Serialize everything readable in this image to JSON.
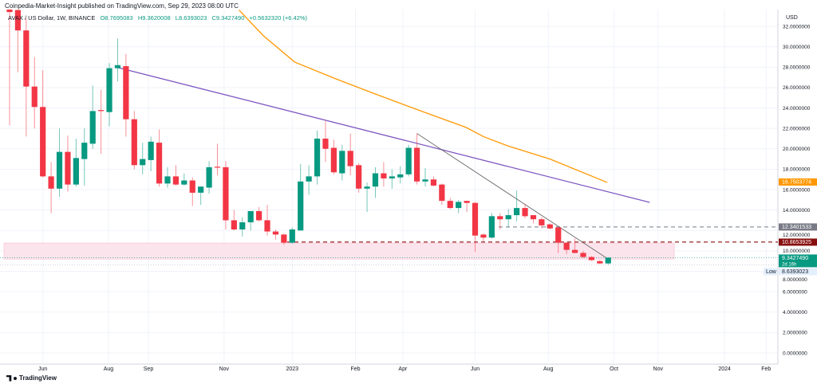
{
  "header": {
    "published": "Coinpedia-Market-Insight published on TradingView.com, Sep 29, 2023 08:00 UTC",
    "symbol": "AVAX / US Dollar, 1W, BINANCE",
    "open": "O8.7695083",
    "high": "H9.3620008",
    "low": "L8.6393023",
    "close": "C9.3427490",
    "change": "+0.5632320 (+6.42%)"
  },
  "currency": "USD",
  "footer": {
    "logo_text": "TradingView"
  },
  "colors": {
    "up": "#089981",
    "down": "#f23645",
    "ma": "#ff9800",
    "trend": "#7e57c2",
    "trend2": "#555555",
    "resist": "#880e0e",
    "zone": "#fce4ec"
  },
  "chart_data": {
    "type": "candlestick",
    "title": "AVAX / US Dollar, 1W, BINANCE",
    "ylim": [
      0,
      32
    ],
    "y_ticks": [
      "0.0000000",
      "2.0000000",
      "4.0000000",
      "6.0000000",
      "8.0000000",
      "10.0000000",
      "12.0000000",
      "14.0000000",
      "16.0000000",
      "18.0000000",
      "20.0000000",
      "22.0000000",
      "24.0000000",
      "26.0000000",
      "28.0000000",
      "30.0000000",
      "32.0000000"
    ],
    "y_tick_values": [
      0,
      2,
      4,
      6,
      8,
      10,
      12,
      14,
      16,
      18,
      20,
      22,
      24,
      26,
      28,
      30,
      32
    ],
    "x_ticks": [
      {
        "label": "Jun",
        "index": 4
      },
      {
        "label": "Aug",
        "index": 11.9
      },
      {
        "label": "Sep",
        "index": 16.7
      },
      {
        "label": "Nov",
        "index": 25.8
      },
      {
        "label": "2023",
        "index": 34
      },
      {
        "label": "Feb",
        "index": 41.6
      },
      {
        "label": "Apr",
        "index": 47.3
      },
      {
        "label": "Jun",
        "index": 56
      },
      {
        "label": "Aug",
        "index": 64.8
      },
      {
        "label": "Oct",
        "index": 72.7
      },
      {
        "label": "Nov",
        "index": 78
      },
      {
        "label": "2024",
        "index": 86
      },
      {
        "label": "Feb",
        "index": 91
      }
    ],
    "candles": [
      [
        34.5,
        33.4,
        35,
        22.3
      ],
      [
        33.6,
        31.6,
        34,
        27.5
      ],
      [
        31.6,
        26.1,
        32.8,
        21.2
      ],
      [
        26.1,
        24.1,
        29.0,
        22.0
      ],
      [
        24.1,
        17.3,
        27.7,
        17.2
      ],
      [
        17.3,
        16.1,
        18.7,
        13.7
      ],
      [
        16.1,
        19.7,
        22.0,
        15.3
      ],
      [
        19.7,
        16.5,
        21.3,
        15.8
      ],
      [
        16.5,
        19.1,
        21.0,
        16.3
      ],
      [
        19.0,
        20.6,
        22.0,
        16.4
      ],
      [
        20.5,
        23.7,
        26.2,
        20.0
      ],
      [
        23.8,
        23.7,
        25.8,
        19.5
      ],
      [
        23.6,
        27.9,
        28.4,
        22.2
      ],
      [
        27.9,
        28.2,
        30.8,
        26.6
      ],
      [
        28.1,
        22.9,
        29.3,
        21.2
      ],
      [
        22.9,
        18.4,
        23.7,
        18.0
      ],
      [
        18.4,
        19.0,
        20.6,
        17.5
      ],
      [
        18.9,
        20.7,
        21.2,
        17.8
      ],
      [
        20.6,
        16.6,
        21.9,
        16.3
      ],
      [
        16.6,
        17.3,
        18.2,
        16.2
      ],
      [
        17.3,
        16.5,
        18.4,
        16.4
      ],
      [
        16.5,
        16.9,
        17.6,
        16.4
      ],
      [
        16.9,
        15.7,
        17.2,
        14.4
      ],
      [
        15.7,
        16.3,
        16.3,
        14.5
      ],
      [
        16.2,
        18.2,
        18.8,
        15.6
      ],
      [
        18.25,
        18.2,
        20.5,
        17.4
      ],
      [
        18.2,
        13.0,
        18.8,
        12.1
      ],
      [
        13.0,
        12.1,
        14.0,
        12.0
      ],
      [
        12.1,
        12.8,
        13.3,
        11.4
      ],
      [
        12.8,
        13.9,
        13.9,
        12.0
      ],
      [
        13.9,
        13.0,
        14.3,
        12.9
      ],
      [
        13.0,
        11.9,
        14.5,
        11.5
      ],
      [
        11.9,
        11.6,
        12.1,
        11.1
      ],
      [
        11.6,
        10.8,
        11.7,
        10.6
      ],
      [
        10.8,
        12.1,
        12.3,
        10.7
      ],
      [
        12.0,
        16.8,
        18.5,
        12.0
      ],
      [
        16.8,
        17.3,
        18.4,
        15.5
      ],
      [
        17.3,
        21.0,
        21.8,
        16.5
      ],
      [
        21.0,
        20.0,
        22.7,
        18.7
      ],
      [
        20.1,
        17.7,
        20.9,
        17.5
      ],
      [
        17.6,
        19.8,
        20.4,
        16.9
      ],
      [
        19.8,
        18.3,
        21.5,
        17.4
      ],
      [
        18.4,
        16.1,
        18.6,
        15.7
      ],
      [
        16.1,
        16.3,
        16.7,
        13.8
      ],
      [
        16.3,
        17.6,
        18.2,
        15.2
      ],
      [
        17.6,
        17.1,
        18.7,
        16.3
      ],
      [
        17.1,
        17.3,
        18.0,
        16.1
      ],
      [
        17.2,
        17.5,
        18.3,
        16.6
      ],
      [
        17.5,
        20.1,
        20.4,
        17.3
      ],
      [
        20.1,
        16.8,
        21.5,
        16.5
      ],
      [
        16.8,
        17.0,
        18.1,
        16.3
      ],
      [
        17.0,
        16.4,
        17.3,
        16.3
      ],
      [
        16.5,
        14.9,
        16.6,
        14.5
      ],
      [
        14.9,
        14.2,
        15.2,
        14.1
      ],
      [
        14.2,
        14.8,
        15.0,
        13.7
      ],
      [
        14.9,
        14.7,
        14.9,
        13.8
      ],
      [
        14.7,
        11.5,
        14.8,
        9.9
      ],
      [
        11.6,
        11.3,
        11.7,
        10.9
      ],
      [
        11.3,
        13.4,
        13.7,
        11.2
      ],
      [
        13.4,
        13.1,
        13.7,
        12.1
      ],
      [
        13.1,
        13.5,
        14.1,
        12.3
      ],
      [
        13.5,
        14.2,
        15.9,
        12.9
      ],
      [
        14.2,
        13.4,
        14.6,
        13.2
      ],
      [
        13.5,
        13.1,
        13.5,
        12.7
      ],
      [
        13.1,
        12.5,
        13.3,
        12.2
      ],
      [
        12.6,
        12.2,
        12.7,
        12.1
      ],
      [
        12.3,
        10.8,
        12.3,
        9.8
      ],
      [
        10.8,
        10.1,
        10.9,
        9.7
      ],
      [
        10.1,
        9.8,
        11.2,
        9.75
      ],
      [
        9.8,
        9.4,
        10.0,
        9.3
      ],
      [
        9.4,
        9.1,
        9.5,
        9.0
      ],
      [
        9.0,
        8.7695,
        9.1,
        8.7
      ],
      [
        8.7695,
        9.3427,
        9.362,
        8.6393
      ]
    ],
    "ma_line": [
      [
        27.6,
        33.6
      ],
      [
        30.5,
        31.1
      ],
      [
        34.3,
        28.5
      ],
      [
        39.1,
        26.9
      ],
      [
        43.9,
        25.4
      ],
      [
        49.5,
        23.7
      ],
      [
        54.9,
        22.1
      ],
      [
        57.0,
        21.2
      ],
      [
        59.9,
        20.3
      ],
      [
        65.0,
        19.0
      ],
      [
        71.9,
        16.7
      ]
    ],
    "trendline_purple": [
      [
        12.85,
        28.0
      ],
      [
        77.0,
        14.75
      ]
    ],
    "trendline_gray": [
      [
        49,
        21.5
      ],
      [
        72,
        9.2
      ]
    ],
    "support_zone": [
      9.2,
      10.77
    ],
    "levels": {
      "ma_value": "16.7503774",
      "resistance_1": "12.3401533",
      "resistance_2": "10.8653925",
      "last_price": "9.3427490",
      "countdown": "2d 16h",
      "low_label": "Low",
      "low_value": "8.6393023"
    }
  }
}
